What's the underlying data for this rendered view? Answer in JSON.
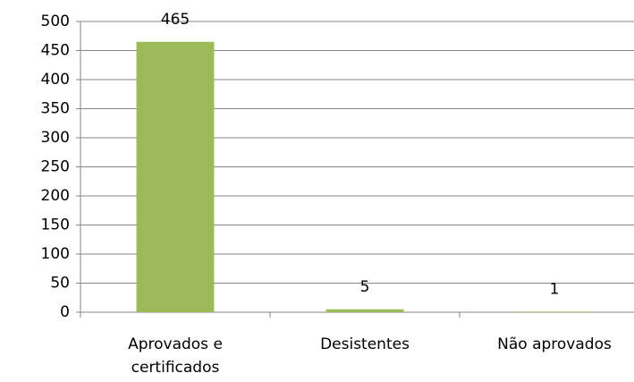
{
  "chart_data": {
    "type": "bar",
    "categories": [
      "Aprovados e certificados",
      "Desistentes",
      "Não aprovados"
    ],
    "values": [
      465,
      5,
      1
    ],
    "color": "#9bbb59",
    "ylim": [
      0,
      500
    ],
    "yticks": [
      0,
      50,
      100,
      150,
      200,
      250,
      300,
      350,
      400,
      450,
      500
    ],
    "grid": true
  }
}
